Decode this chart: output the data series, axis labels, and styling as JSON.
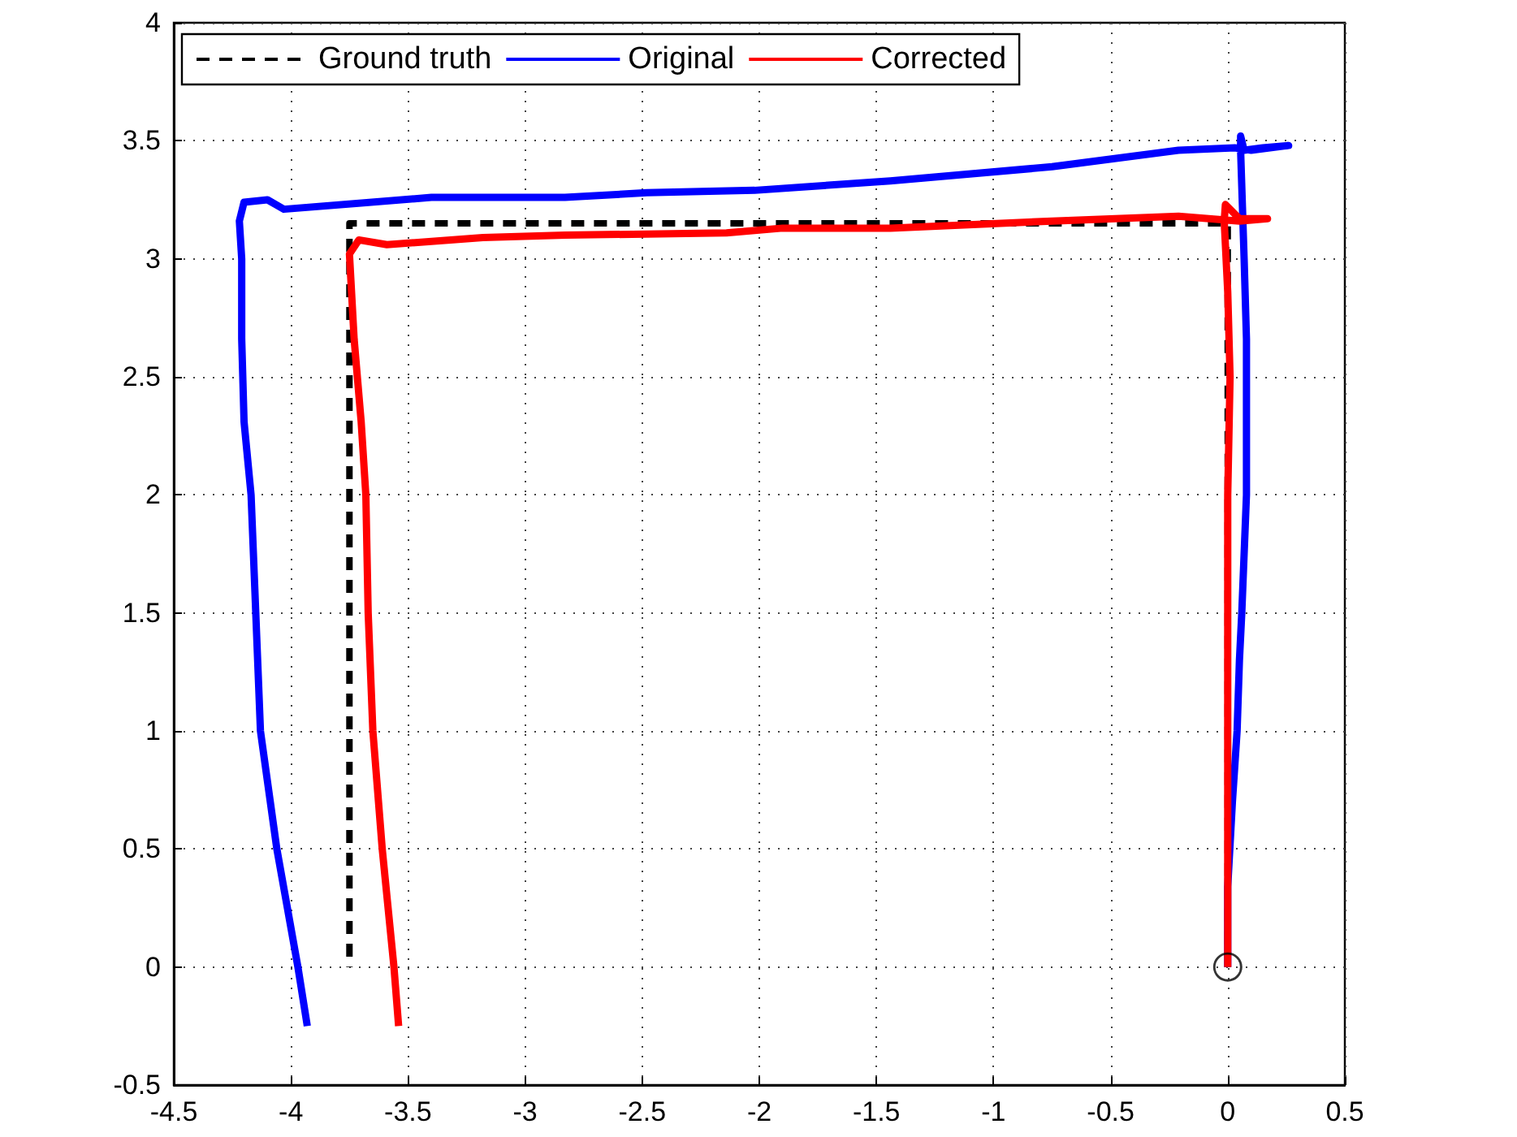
{
  "chart_data": {
    "type": "line",
    "xlim": [
      -4.5,
      0.5
    ],
    "ylim": [
      -0.5,
      4
    ],
    "xticks": [
      -4.5,
      -4,
      -3.5,
      -3,
      -2.5,
      -2,
      -1.5,
      -1,
      -0.5,
      0,
      0.5
    ],
    "yticks": [
      -0.5,
      0,
      0.5,
      1,
      1.5,
      2,
      2.5,
      3,
      3.5,
      4
    ],
    "grid": true,
    "legend": "top left",
    "series": [
      {
        "name": "Ground truth",
        "color": "#000000",
        "line_style": "dashed",
        "marker": "none",
        "x": [
          0,
          0,
          -3.75,
          -3.75
        ],
        "values": [
          0,
          3.15,
          3.15,
          0
        ]
      },
      {
        "name": "Original",
        "color": "#0000ff",
        "line_style": "solid",
        "marker": "none",
        "x": [
          0,
          0,
          0.02,
          0.04,
          0.05,
          0.06,
          0.07,
          0.08,
          0.08,
          0.07,
          0.055,
          0.055,
          0.07,
          0.15,
          0.26,
          0.1,
          0.03,
          -0.21,
          -0.75,
          -1.44,
          -2.02,
          -2.48,
          -2.83,
          -3.4,
          -4.03,
          -4.1,
          -4.2,
          -4.22,
          -4.21,
          -4.21,
          -4.2,
          -4.17,
          -4.15,
          -4.13,
          -4.06,
          -3.97,
          -3.93
        ],
        "values": [
          0,
          0.34,
          0.7,
          1,
          1.3,
          1.5,
          1.75,
          2,
          2.66,
          3,
          3.46,
          3.52,
          3.46,
          3.47,
          3.48,
          3.46,
          3.47,
          3.46,
          3.39,
          3.33,
          3.29,
          3.28,
          3.26,
          3.26,
          3.21,
          3.25,
          3.24,
          3.16,
          3,
          2.66,
          2.31,
          2,
          1.5,
          1,
          0.5,
          0,
          -0.25
        ]
      },
      {
        "name": "Corrected",
        "color": "#ff0000",
        "line_style": "solid",
        "marker": "none",
        "x": [
          0,
          0,
          0,
          0.01,
          0,
          -0.015,
          -0.01,
          0.05,
          0.17,
          0.05,
          -0.21,
          -0.75,
          -1.44,
          -1.9,
          -2.14,
          -2.83,
          -3.18,
          -3.59,
          -3.71,
          -3.75,
          -3.73,
          -3.7,
          -3.68,
          -3.67,
          -3.65,
          -3.61,
          -3.56,
          -3.54
        ],
        "values": [
          0,
          1,
          2,
          2.5,
          2.86,
          3.16,
          3.23,
          3.17,
          3.17,
          3.16,
          3.18,
          3.16,
          3.13,
          3.13,
          3.11,
          3.1,
          3.09,
          3.06,
          3.08,
          3.02,
          2.66,
          2.31,
          2,
          1.5,
          1,
          0.5,
          0,
          -0.25
        ]
      },
      {
        "type": "scatter",
        "color": "#000000",
        "marker": "circle",
        "x": [
          0
        ],
        "values": [
          0
        ]
      }
    ]
  }
}
